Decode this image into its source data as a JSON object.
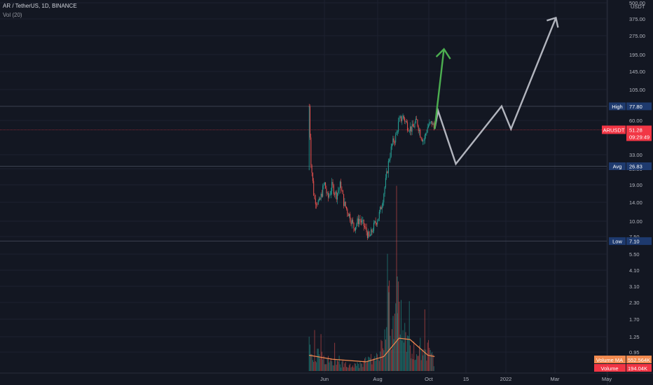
{
  "header": {
    "symbol": "AR / TetherUS, 1D, BINANCE",
    "indicator": "Vol (20)"
  },
  "chart_data": {
    "type": "candlestick",
    "title": "AR / TetherUS, 1D, BINANCE",
    "price_scale": "log",
    "currency": "USDT",
    "y_ticks": [
      "500.00",
      "375.00",
      "275.00",
      "195.00",
      "145.00",
      "105.00",
      "60.00",
      "33.00",
      "25.00",
      "19.00",
      "14.00",
      "10.00",
      "7.50",
      "5.50",
      "4.10",
      "3.10",
      "2.30",
      "1.70",
      "1.25",
      "0.95"
    ],
    "x_ticks": [
      "Jun",
      "Aug",
      "Oct",
      "15",
      "2022",
      "Mar",
      "May"
    ],
    "price_trace": [
      {
        "date": "2021-05-14",
        "price": 77.8
      },
      {
        "date": "2021-05-16",
        "price": 30
      },
      {
        "date": "2021-05-20",
        "price": 15
      },
      {
        "date": "2021-05-26",
        "price": 14
      },
      {
        "date": "2021-06-01",
        "price": 20
      },
      {
        "date": "2021-06-05",
        "price": 15
      },
      {
        "date": "2021-06-10",
        "price": 19
      },
      {
        "date": "2021-06-15",
        "price": 16
      },
      {
        "date": "2021-06-20",
        "price": 19.5
      },
      {
        "date": "2021-06-24",
        "price": 14
      },
      {
        "date": "2021-07-01",
        "price": 11
      },
      {
        "date": "2021-07-06",
        "price": 9
      },
      {
        "date": "2021-07-12",
        "price": 10.5
      },
      {
        "date": "2021-07-17",
        "price": 9.5
      },
      {
        "date": "2021-07-24",
        "price": 7.5
      },
      {
        "date": "2021-07-30",
        "price": 9.5
      },
      {
        "date": "2021-08-04",
        "price": 11
      },
      {
        "date": "2021-08-08",
        "price": 14
      },
      {
        "date": "2021-08-12",
        "price": 20
      },
      {
        "date": "2021-08-16",
        "price": 30
      },
      {
        "date": "2021-08-20",
        "price": 40
      },
      {
        "date": "2021-08-24",
        "price": 45
      },
      {
        "date": "2021-08-28",
        "price": 60
      },
      {
        "date": "2021-09-02",
        "price": 65
      },
      {
        "date": "2021-09-07",
        "price": 55
      },
      {
        "date": "2021-09-12",
        "price": 52
      },
      {
        "date": "2021-09-18",
        "price": 60
      },
      {
        "date": "2021-09-22",
        "price": 48
      },
      {
        "date": "2021-09-26",
        "price": 42
      },
      {
        "date": "2021-10-01",
        "price": 55
      },
      {
        "date": "2021-10-06",
        "price": 58
      },
      {
        "date": "2021-10-09",
        "price": 51.28
      }
    ],
    "volume_trace": [
      {
        "date": "2021-05-14",
        "volume": 1.3
      },
      {
        "date": "2021-05-20",
        "volume": 0.8
      },
      {
        "date": "2021-06-01",
        "volume": 0.6
      },
      {
        "date": "2021-06-15",
        "volume": 0.4
      },
      {
        "date": "2021-07-01",
        "volume": 0.3
      },
      {
        "date": "2021-07-12",
        "volume": 0.3
      },
      {
        "date": "2021-07-24",
        "volume": 0.5
      },
      {
        "date": "2021-08-04",
        "volume": 0.6
      },
      {
        "date": "2021-08-12",
        "volume": 1.6
      },
      {
        "date": "2021-08-16",
        "volume": 3.0
      },
      {
        "date": "2021-08-20",
        "volume": 1.2
      },
      {
        "date": "2021-08-26",
        "volume": 3.5
      },
      {
        "date": "2021-09-01",
        "volume": 1.8
      },
      {
        "date": "2021-09-10",
        "volume": 1.1
      },
      {
        "date": "2021-09-20",
        "volume": 0.8
      },
      {
        "date": "2021-10-01",
        "volume": 1.0
      },
      {
        "date": "2021-10-09",
        "volume": 0.4
      }
    ],
    "volume_ma_trace": [
      {
        "date": "2021-05-14",
        "value": 0.6
      },
      {
        "date": "2021-06-10",
        "value": 0.45
      },
      {
        "date": "2021-07-20",
        "value": 0.35
      },
      {
        "date": "2021-08-10",
        "value": 0.55
      },
      {
        "date": "2021-08-28",
        "value": 1.25
      },
      {
        "date": "2021-09-10",
        "value": 1.2
      },
      {
        "date": "2021-10-01",
        "value": 0.6
      },
      {
        "date": "2021-10-09",
        "value": 0.55
      }
    ],
    "projection_white": [
      {
        "date": "2021-10-09",
        "price": 52
      },
      {
        "date": "2021-10-13",
        "price": 72
      },
      {
        "date": "2021-11-03",
        "price": 28
      },
      {
        "date": "2021-12-27",
        "price": 78
      },
      {
        "date": "2022-01-07",
        "price": 52
      },
      {
        "date": "2022-03-01",
        "price": 375
      }
    ],
    "projection_green": [
      {
        "date": "2021-10-09",
        "price": 52
      },
      {
        "date": "2021-10-20",
        "price": 215
      }
    ],
    "levels": [
      {
        "label": "High",
        "value": "77.80",
        "color": "#1e3a6e"
      },
      {
        "label": "Avg",
        "value": "26.83",
        "color": "#1e3a6e"
      },
      {
        "label": "Low",
        "value": "7.10",
        "color": "#1e3a6e"
      }
    ],
    "last_price": {
      "label": "ARUSDT",
      "value": "51.28",
      "countdown": "09:29:49",
      "color": "#f23645"
    },
    "volume_labels": [
      {
        "label": "Volume MA",
        "value": "552.564K",
        "color": "#f28b50"
      },
      {
        "label": "Volume",
        "value": "194.04K",
        "color": "#f23645"
      }
    ]
  }
}
